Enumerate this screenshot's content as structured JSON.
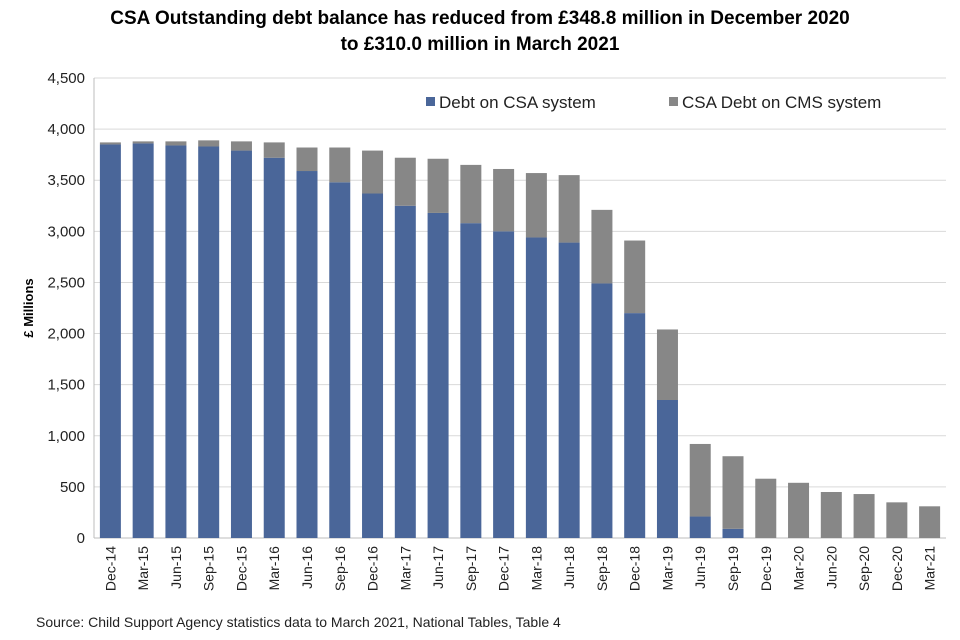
{
  "chart_data": {
    "type": "bar",
    "stacked": true,
    "title_lines": [
      "CSA Outstanding debt balance has reduced from £348.8 million in December 2020",
      "to £310.0 million in March 2021"
    ],
    "xlabel": "",
    "ylabel": "£ Millions",
    "ylim": [
      0,
      4500
    ],
    "yticks": [
      0,
      500,
      1000,
      1500,
      2000,
      2500,
      3000,
      3500,
      4000,
      4500
    ],
    "ytick_labels": [
      "0",
      "500",
      "1,000",
      "1,500",
      "2,000",
      "2,500",
      "3,000",
      "3,500",
      "4,000",
      "4,500"
    ],
    "grid": "horizontal",
    "legend_position": "top-right",
    "categories": [
      "Dec-14",
      "Mar-15",
      "Jun-15",
      "Sep-15",
      "Dec-15",
      "Mar-16",
      "Jun-16",
      "Sep-16",
      "Dec-16",
      "Mar-17",
      "Jun-17",
      "Sep-17",
      "Dec-17",
      "Mar-18",
      "Jun-18",
      "Sep-18",
      "Dec-18",
      "Mar-19",
      "Jun-19",
      "Sep-19",
      "Dec-19",
      "Mar-20",
      "Jun-20",
      "Sep-20",
      "Dec-20",
      "Mar-21"
    ],
    "series": [
      {
        "name": "Debt on CSA system",
        "color": "#4a6699",
        "values": [
          3850,
          3860,
          3840,
          3830,
          3790,
          3720,
          3590,
          3480,
          3370,
          3250,
          3180,
          3080,
          3000,
          2940,
          2890,
          2490,
          2200,
          1350,
          210,
          90,
          0,
          0,
          0,
          0,
          0,
          0
        ]
      },
      {
        "name": "CSA Debt on CMS system",
        "color": "#878787",
        "values": [
          20,
          20,
          40,
          60,
          90,
          150,
          230,
          340,
          420,
          470,
          530,
          570,
          610,
          630,
          660,
          720,
          710,
          690,
          710,
          710,
          580,
          540,
          450,
          430,
          348.8,
          310
        ]
      }
    ]
  },
  "source": "Source: Child Support Agency statistics data to March 2021, National Tables, Table 4"
}
